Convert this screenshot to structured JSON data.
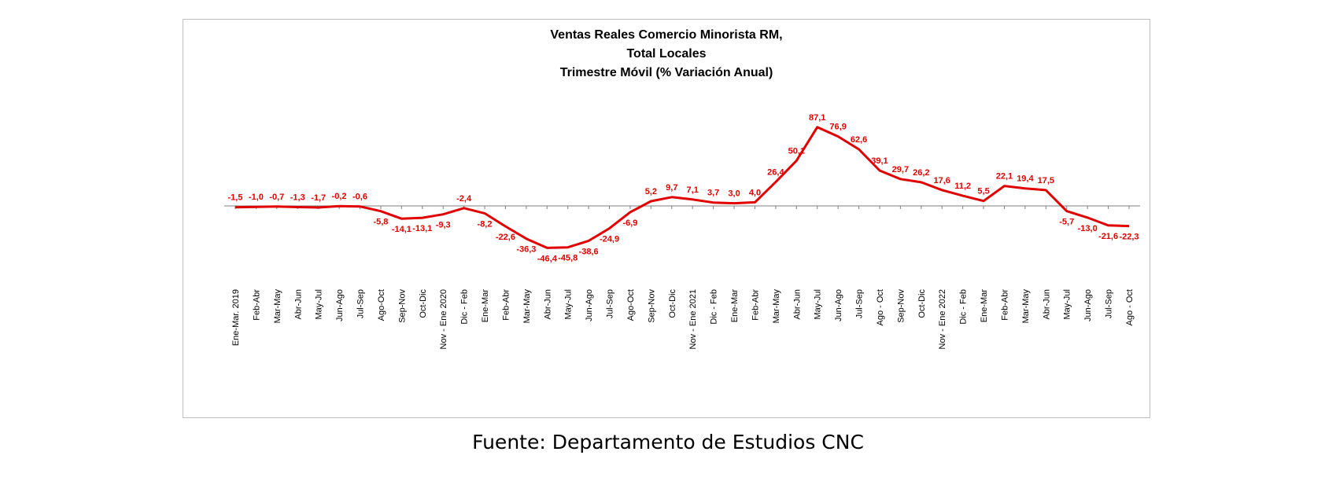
{
  "chart_data": {
    "type": "line",
    "title_lines": [
      "Ventas Reales Comercio Minorista RM,",
      "Total Locales",
      "Trimestre Móvil (% Variación Anual)"
    ],
    "categories": [
      "Ene-Mar. 2019",
      "Feb-Abr",
      "Mar-May",
      "Abr-Jun",
      "May-Jul",
      "Jun-Ago",
      "Jul-Sep",
      "Ago-Oct",
      "Sep-Nov",
      "Oct-Dic",
      "Nov - Ene 2020",
      "Dic - Feb",
      "Ene-Mar",
      "Feb-Abr",
      "Mar-May",
      "Abr-Jun",
      "May-Jul",
      "Jun-Ago",
      "Jul-Sep",
      "Ago-Oct",
      "Sep-Nov",
      "Oct-Dic",
      "Nov - Ene 2021",
      "Dic - Feb",
      "Ene-Mar",
      "Feb-Abr",
      "Mar-May",
      "Abr-Jun",
      "May-Jul",
      "Jun-Ago",
      "Jul-Sep",
      "Ago - Oct",
      "Sep-Nov",
      "Oct-Dic",
      "Nov - Ene 2022",
      "Dic - Feb",
      "Ene-Mar",
      "Feb-Abr",
      "Mar-May",
      "Abr-Jun",
      "May-Jul",
      "Jun-Ago",
      "Jul-Sep",
      "Ago - Oct"
    ],
    "values": [
      -1.5,
      -1.0,
      -0.7,
      -1.3,
      -1.7,
      -0.2,
      -0.6,
      -5.8,
      -14.1,
      -13.1,
      -9.3,
      -2.4,
      -8.2,
      -22.6,
      -36.3,
      -46.4,
      -45.8,
      -38.6,
      -24.9,
      -6.9,
      5.2,
      9.7,
      7.1,
      3.7,
      3.0,
      4.0,
      26.4,
      50.1,
      87.1,
      76.9,
      62.6,
      39.1,
      29.7,
      26.2,
      17.6,
      11.2,
      5.5,
      22.1,
      19.4,
      17.5,
      -5.7,
      -13.0,
      -21.6,
      -22.3
    ],
    "data_labels": [
      "-1,5",
      "-1,0",
      "-0,7",
      "-1,3",
      "-1,7",
      "-0,2",
      "-0,6",
      "-5,8",
      "-14,1",
      "-13,1",
      "-9,3",
      "-2,4",
      "-8,2",
      "-22,6",
      "-36,3",
      "-46,4",
      "-45,8",
      "-38,6",
      "-24,9",
      "-6,9",
      "5,2",
      "9,7",
      "7,1",
      "3,7",
      "3,0",
      "4,0",
      "26,4",
      "50,1",
      "87,1",
      "76,9",
      "62,6",
      "39,1",
      "29,7",
      "26,2",
      "17,6",
      "11,2",
      "5,5",
      "22,1",
      "19,4",
      "17,5",
      "-5,7",
      "-13,0",
      "-21,6",
      "-22,3"
    ],
    "line_color": "#e00000",
    "label_color": "#e00000",
    "axis_color": "#7f7f7f",
    "ylim": [
      -55,
      95
    ],
    "grid": false,
    "legend": "none"
  },
  "source_note": "Fuente: Departamento de Estudios CNC"
}
